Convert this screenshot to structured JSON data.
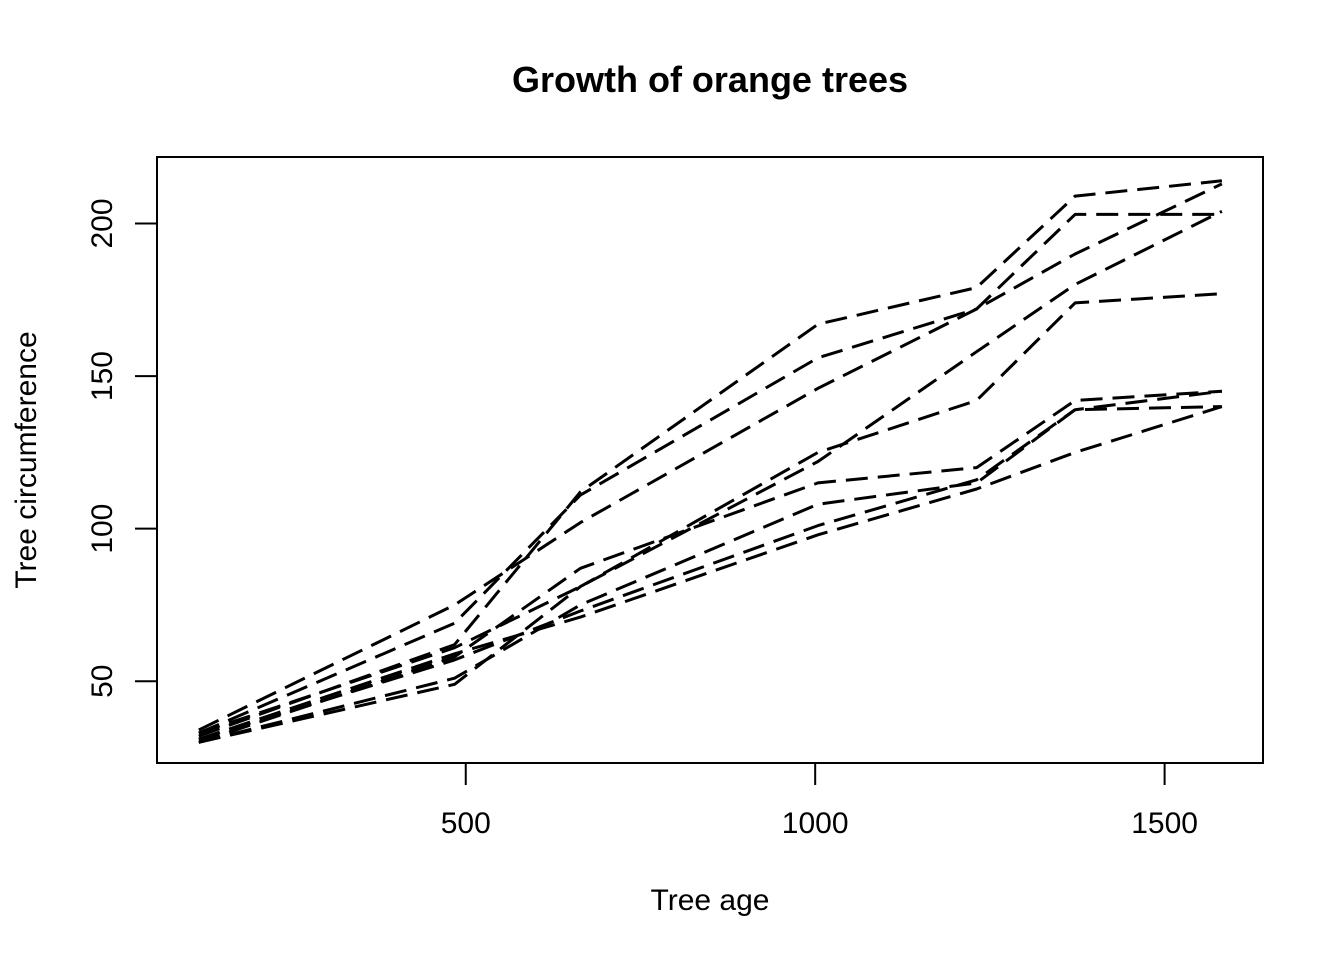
{
  "chart_data": {
    "type": "line",
    "title": "Growth of orange trees",
    "xlabel": "Tree age",
    "ylabel": "Tree circumference",
    "xlim": [
      58.2,
      1640.8
    ],
    "ylim": [
      23.2,
      221.8
    ],
    "xticks": [
      500,
      1000,
      1500
    ],
    "yticks": [
      50,
      100,
      150,
      200
    ],
    "grid": false,
    "legend": "none",
    "line_style": "dashed",
    "color": "#000000",
    "x": [
      118,
      484,
      664,
      1004,
      1231,
      1372,
      1582
    ],
    "series": [
      {
        "values": [
          30,
          58,
          87,
          115,
          120,
          142,
          145
        ]
      },
      {
        "values": [
          33,
          69,
          111,
          156,
          172,
          203,
          203
        ]
      },
      {
        "values": [
          30,
          51,
          75,
          108,
          115,
          139,
          140
        ]
      },
      {
        "values": [
          32,
          62,
          112,
          167,
          179,
          209,
          214
        ]
      },
      {
        "values": [
          30,
          49,
          81,
          125,
          142,
          174,
          177
        ]
      },
      {
        "values": [
          31,
          57,
          73,
          101,
          116,
          139,
          145
        ]
      },
      {
        "values": [
          33,
          61,
          81,
          122,
          158,
          180,
          204
        ]
      },
      {
        "values": [
          34,
          75,
          102,
          146,
          172,
          190,
          213
        ]
      },
      {
        "values": [
          31,
          59,
          71,
          98,
          113,
          125,
          140
        ]
      }
    ]
  }
}
